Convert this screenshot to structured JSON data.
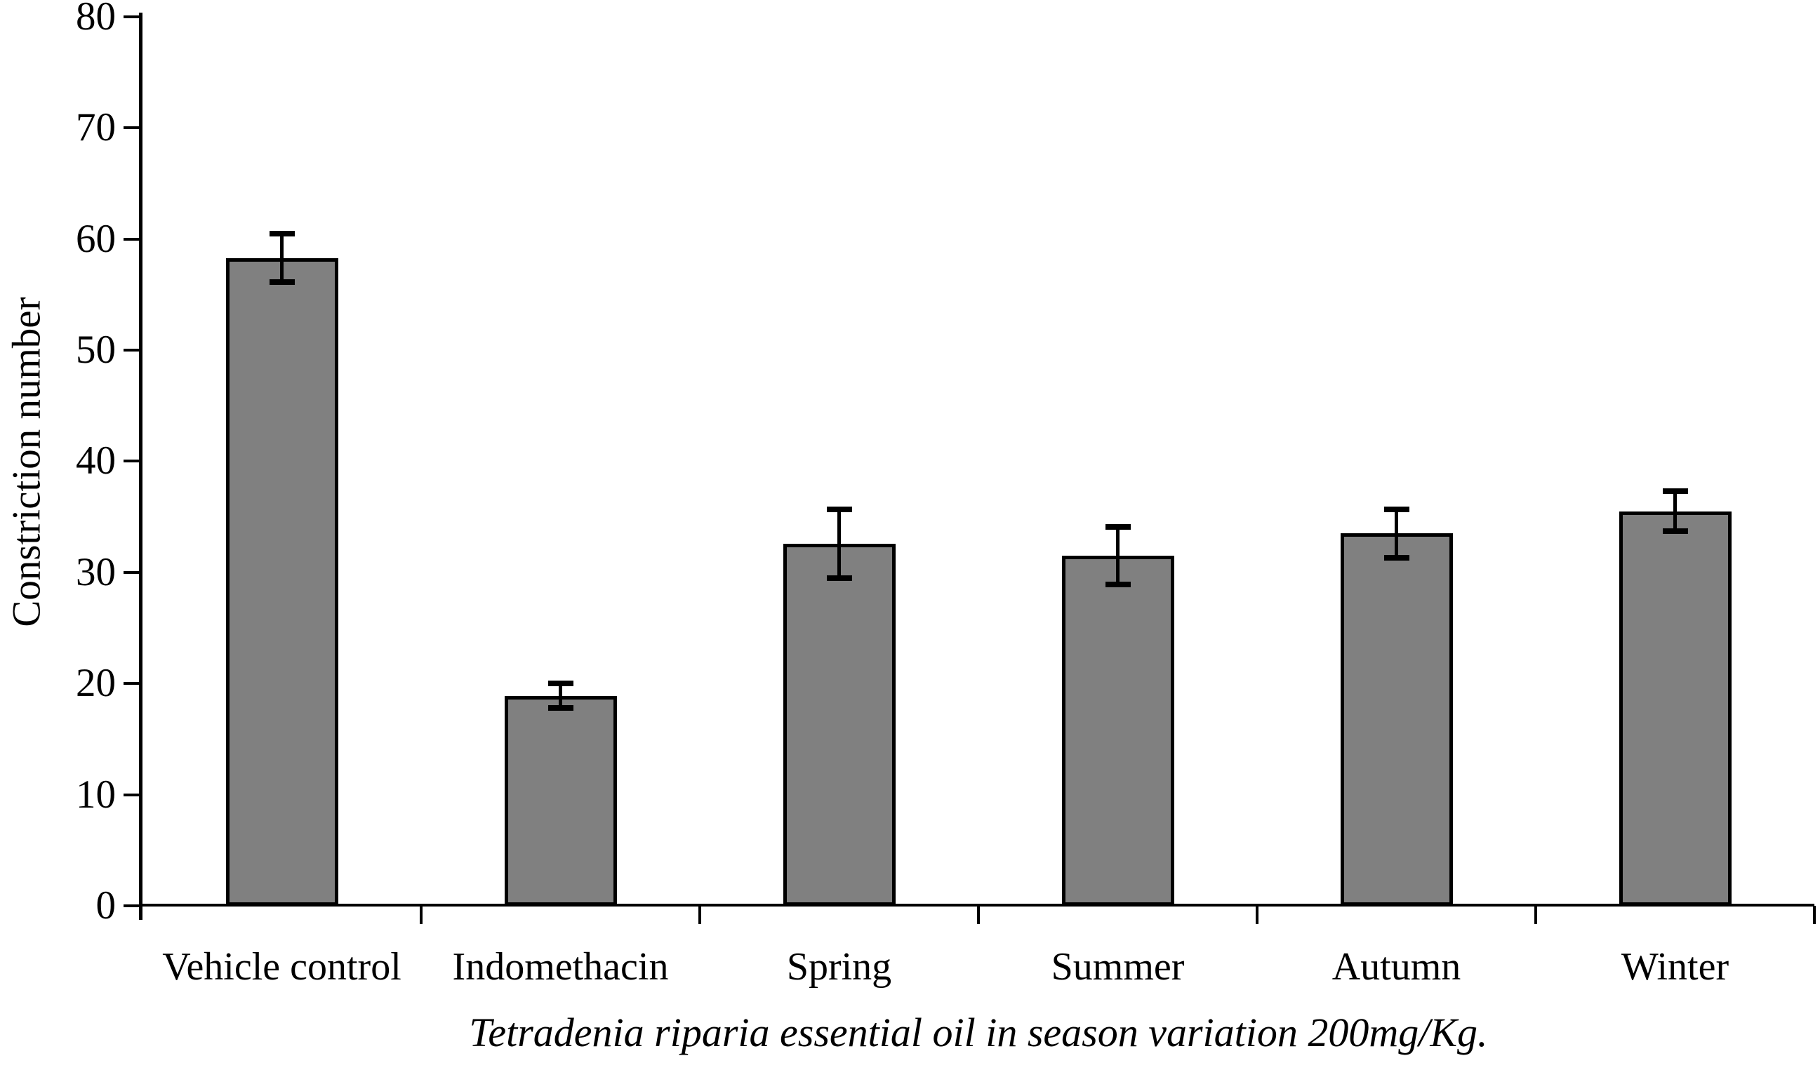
{
  "chart_data": {
    "type": "bar",
    "title": "",
    "categories": [
      "Vehicle control",
      "Indomethacin",
      "Spring",
      "Summer",
      "Autumn",
      "Winter"
    ],
    "values": [
      58.3,
      18.9,
      32.6,
      31.5,
      33.5,
      35.5
    ],
    "error_bars": [
      2.2,
      1.1,
      3.1,
      2.6,
      2.2,
      1.8
    ],
    "ylabel": "Constriction number",
    "xlabel": "Tetradenia riparia essential oil in season variation 200mg/Kg.",
    "ylim": [
      0,
      80
    ],
    "ytick_interval": 10,
    "ytick_labels": [
      "0",
      "10",
      "20",
      "30",
      "40",
      "50",
      "60",
      "70",
      "80"
    ],
    "grid": "off",
    "legend": "none",
    "bar_fill_color": "#808080",
    "bar_border_color": "#000000",
    "error_bar_color": "#000000",
    "axis_color": "#000000",
    "background_color": "#ffffff"
  }
}
